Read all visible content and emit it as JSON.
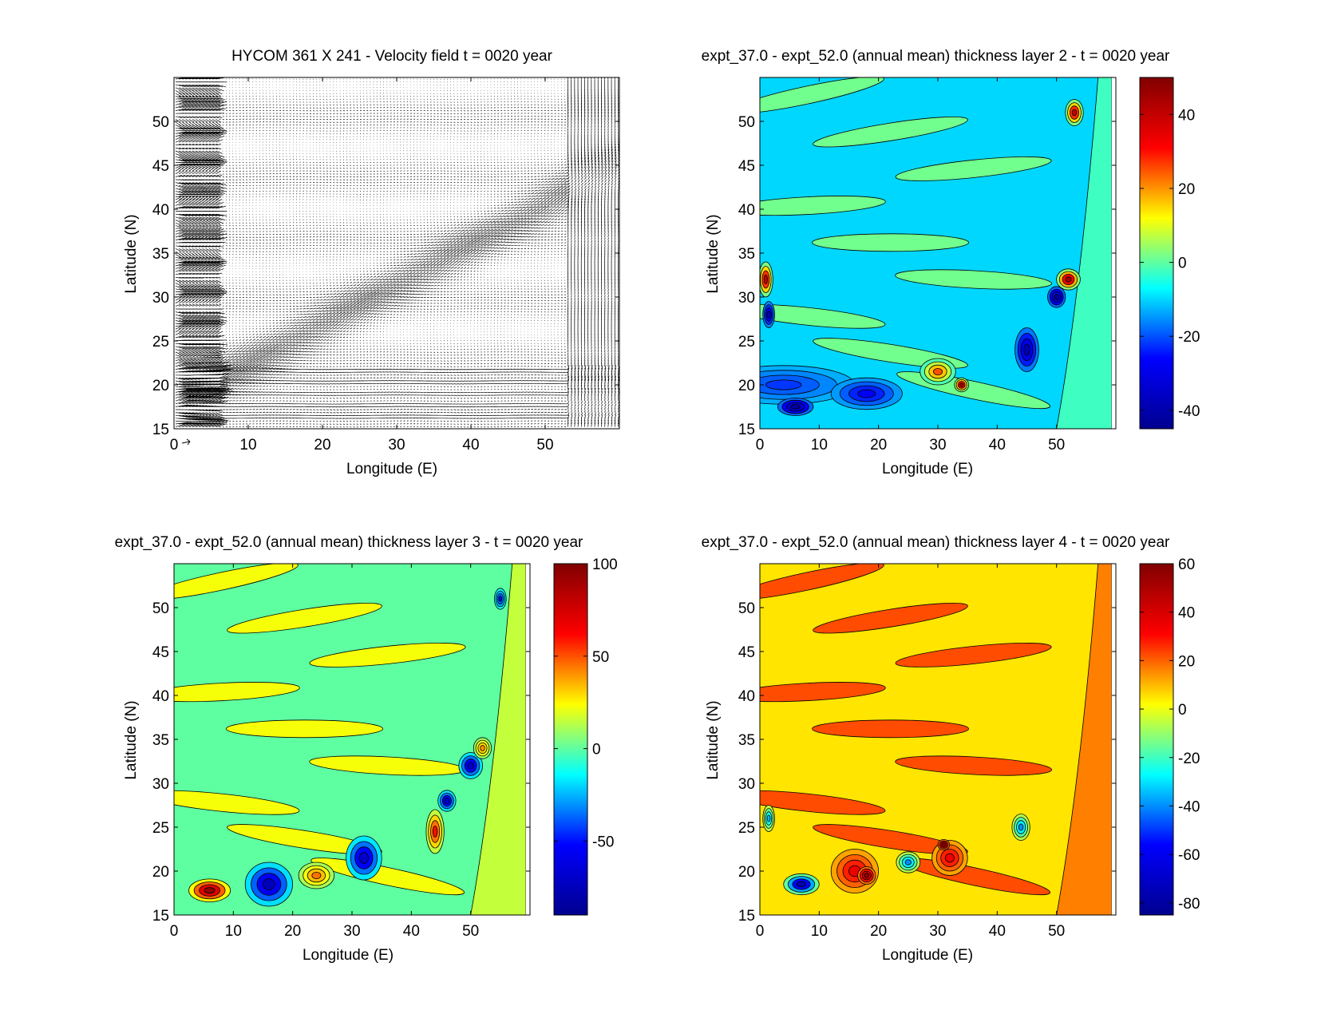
{
  "colormap_jet": [
    "#00008f",
    "#0000ff",
    "#00ffff",
    "#ffff00",
    "#ff0000",
    "#800000"
  ],
  "chart_data": [
    {
      "type": "vector_field",
      "title": "HYCOM 361 X 241 - Velocity field  t = 0020 year",
      "xlabel": "Longitude (E)",
      "ylabel": "Latitude (N)",
      "xlim": [
        0,
        60
      ],
      "ylim": [
        15,
        55
      ],
      "xticks": [
        0,
        10,
        20,
        30,
        40,
        50
      ],
      "yticks": [
        15,
        20,
        25,
        30,
        35,
        40,
        45,
        50
      ],
      "grid": false
    },
    {
      "type": "contourf",
      "title": "expt_37.0 - expt_52.0 (annual mean) thickness layer 2 - t = 0020 year",
      "xlabel": "Longitude (E)",
      "ylabel": "Latitude (N)",
      "xlim": [
        0,
        60
      ],
      "ylim": [
        15,
        55
      ],
      "xticks": [
        0,
        10,
        20,
        30,
        40,
        50
      ],
      "yticks": [
        15,
        20,
        25,
        30,
        35,
        40,
        45,
        50
      ],
      "background_level": -10,
      "features": [
        {
          "lon": 4,
          "lat": 20,
          "rx": 12,
          "ry": 2.2,
          "v": -22
        },
        {
          "lon": 6,
          "lat": 17.5,
          "rx": 3,
          "ry": 1,
          "v": -42
        },
        {
          "lon": 18,
          "lat": 19,
          "rx": 6,
          "ry": 1.8,
          "v": -28
        },
        {
          "lon": 30,
          "lat": 21.5,
          "rx": 3,
          "ry": 1.5,
          "v": 25
        },
        {
          "lon": 34,
          "lat": 20,
          "rx": 1.2,
          "ry": 0.8,
          "v": 45
        },
        {
          "lon": 45,
          "lat": 24,
          "rx": 2,
          "ry": 2.5,
          "v": -38
        },
        {
          "lon": 50,
          "lat": 30,
          "rx": 1.5,
          "ry": 1.2,
          "v": -42
        },
        {
          "lon": 52,
          "lat": 32,
          "rx": 2,
          "ry": 1.2,
          "v": 45
        },
        {
          "lon": 53,
          "lat": 51,
          "rx": 1.5,
          "ry": 1.5,
          "v": 40
        },
        {
          "lon": 1,
          "lat": 32,
          "rx": 1.2,
          "ry": 2,
          "v": 40
        },
        {
          "lon": 1.5,
          "lat": 28,
          "rx": 1,
          "ry": 1.5,
          "v": -35
        }
      ],
      "colorbar": {
        "min": -45,
        "max": 50,
        "ticks": [
          -40,
          -20,
          0,
          20,
          40
        ]
      }
    },
    {
      "type": "contourf",
      "title": "expt_37.0 - expt_52.0 (annual mean) thickness layer 3 - t = 0020 year",
      "xlabel": "Longitude (E)",
      "ylabel": "Latitude (N)",
      "xlim": [
        0,
        60
      ],
      "ylim": [
        15,
        55
      ],
      "xticks": [
        0,
        10,
        20,
        30,
        40,
        50
      ],
      "yticks": [
        15,
        20,
        25,
        30,
        35,
        40,
        45,
        50
      ],
      "background_level": 0,
      "features": [
        {
          "lon": 6,
          "lat": 17.8,
          "rx": 3.5,
          "ry": 1.3,
          "v": 95
        },
        {
          "lon": 16,
          "lat": 18.5,
          "rx": 4,
          "ry": 2.5,
          "v": -75
        },
        {
          "lon": 24,
          "lat": 19.5,
          "rx": 3,
          "ry": 1.5,
          "v": 45
        },
        {
          "lon": 32,
          "lat": 21.5,
          "rx": 3,
          "ry": 2.5,
          "v": -70
        },
        {
          "lon": 44,
          "lat": 24.5,
          "rx": 1.5,
          "ry": 2.5,
          "v": 60
        },
        {
          "lon": 46,
          "lat": 28,
          "rx": 1.5,
          "ry": 1.2,
          "v": -70
        },
        {
          "lon": 50,
          "lat": 32,
          "rx": 2,
          "ry": 1.5,
          "v": -70
        },
        {
          "lon": 52,
          "lat": 34,
          "rx": 1.5,
          "ry": 1.2,
          "v": 40
        },
        {
          "lon": 55,
          "lat": 51,
          "rx": 1,
          "ry": 1.2,
          "v": -50
        }
      ],
      "colorbar": {
        "min": -90,
        "max": 100,
        "ticks": [
          -50,
          0,
          50,
          100
        ]
      }
    },
    {
      "type": "contourf",
      "title": "expt_37.0 - expt_52.0 (annual mean) thickness layer 4 - t = 0020 year",
      "xlabel": "Longitude (E)",
      "ylabel": "Latitude (N)",
      "xlim": [
        0,
        60
      ],
      "ylim": [
        15,
        55
      ],
      "xticks": [
        0,
        10,
        20,
        30,
        40,
        50
      ],
      "yticks": [
        15,
        20,
        25,
        30,
        35,
        40,
        45,
        50
      ],
      "background_level": 5,
      "features": [
        {
          "lon": 7,
          "lat": 18.5,
          "rx": 3,
          "ry": 1.2,
          "v": -78
        },
        {
          "lon": 16,
          "lat": 20,
          "rx": 4,
          "ry": 2.5,
          "v": 35
        },
        {
          "lon": 18,
          "lat": 19.5,
          "rx": 1.5,
          "ry": 1,
          "v": 55
        },
        {
          "lon": 32,
          "lat": 21.5,
          "rx": 3,
          "ry": 2,
          "v": 35
        },
        {
          "lon": 31,
          "lat": 23,
          "rx": 1,
          "ry": 0.6,
          "v": 55
        },
        {
          "lon": 25,
          "lat": 21,
          "rx": 2,
          "ry": 1.2,
          "v": -40
        },
        {
          "lon": 44,
          "lat": 25,
          "rx": 1.5,
          "ry": 1.5,
          "v": -40
        },
        {
          "lon": 1.5,
          "lat": 26,
          "rx": 1,
          "ry": 1.5,
          "v": -35
        }
      ],
      "colorbar": {
        "min": -85,
        "max": 60,
        "ticks": [
          -80,
          -60,
          -40,
          -20,
          0,
          20,
          40,
          60
        ]
      }
    }
  ]
}
